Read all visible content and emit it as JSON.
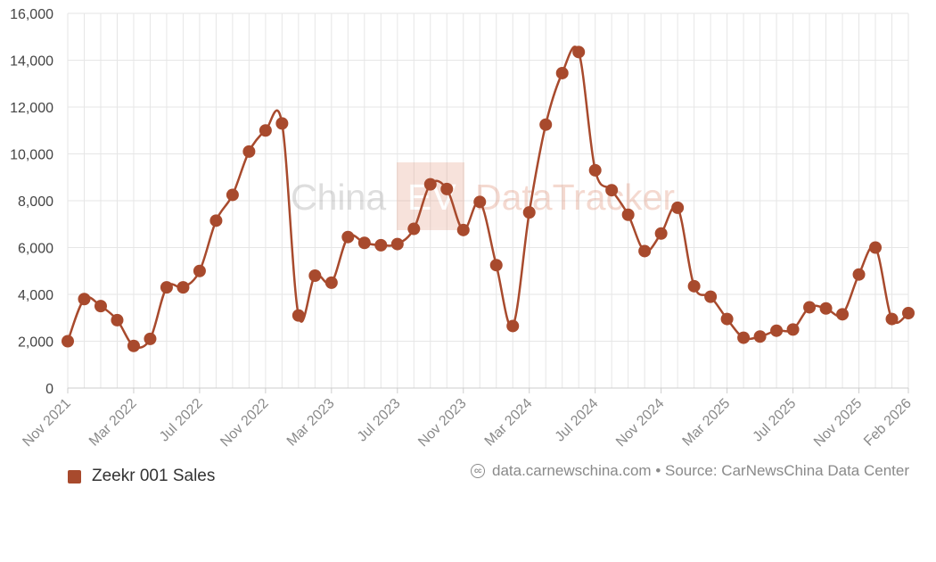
{
  "chart_data": {
    "type": "line",
    "title": "",
    "xlabel": "",
    "ylabel": "",
    "ylim": [
      0,
      16000
    ],
    "y_ticks": [
      0,
      2000,
      4000,
      6000,
      8000,
      10000,
      12000,
      14000,
      16000
    ],
    "y_tick_labels": [
      "0",
      "2,000",
      "4,000",
      "6,000",
      "8,000",
      "10,000",
      "12,000",
      "14,000",
      "16,000"
    ],
    "categories": [
      "Nov 2021",
      "Dec 2021",
      "Jan 2022",
      "Feb 2022",
      "Mar 2022",
      "Apr 2022",
      "May 2022",
      "Jun 2022",
      "Jul 2022",
      "Aug 2022",
      "Sep 2022",
      "Oct 2022",
      "Nov 2022",
      "Dec 2022",
      "Jan 2023",
      "Feb 2023",
      "Mar 2023",
      "Apr 2023",
      "May 2023",
      "Jun 2023",
      "Jul 2023",
      "Aug 2023",
      "Sep 2023",
      "Oct 2023",
      "Nov 2023",
      "Dec 2023",
      "Jan 2024",
      "Feb 2024",
      "Mar 2024",
      "Apr 2024",
      "May 2024",
      "Jun 2024",
      "Jul 2024",
      "Aug 2024",
      "Sep 2024",
      "Oct 2024",
      "Nov 2024",
      "Dec 2024",
      "Jan 2025",
      "Feb 2025",
      "Mar 2025",
      "Apr 2025",
      "May 2025",
      "Jun 2025",
      "Jul 2025",
      "Aug 2025",
      "Sep 2025",
      "Oct 2025",
      "Nov 2025",
      "Dec 2025",
      "Jan 2026",
      "Feb 2026"
    ],
    "x_tick_labels": [
      {
        "index": 0,
        "label": "Nov 2021"
      },
      {
        "index": 4,
        "label": "Mar 2022"
      },
      {
        "index": 8,
        "label": "Jul 2022"
      },
      {
        "index": 12,
        "label": "Nov 2022"
      },
      {
        "index": 16,
        "label": "Mar 2023"
      },
      {
        "index": 20,
        "label": "Jul 2023"
      },
      {
        "index": 24,
        "label": "Nov 2023"
      },
      {
        "index": 28,
        "label": "Mar 2024"
      },
      {
        "index": 32,
        "label": "Jul 2024"
      },
      {
        "index": 36,
        "label": "Nov 2024"
      },
      {
        "index": 40,
        "label": "Mar 2025"
      },
      {
        "index": 44,
        "label": "Jul 2025"
      },
      {
        "index": 48,
        "label": "Nov 2025"
      },
      {
        "index": 51,
        "label": "Feb 2026"
      }
    ],
    "series": [
      {
        "name": "Zeekr 001 Sales",
        "color": "#a84a2d",
        "values": [
          2000,
          3800,
          3500,
          2900,
          1800,
          2100,
          4300,
          4300,
          5000,
          7150,
          8250,
          10100,
          11000,
          11300,
          3100,
          4800,
          4500,
          6450,
          6200,
          6100,
          6150,
          6800,
          8700,
          8500,
          6750,
          7950,
          5250,
          2650,
          7500,
          11250,
          13450,
          14350,
          9300,
          8450,
          7400,
          5850,
          6600,
          7700,
          4350,
          3900,
          2950,
          2150,
          2200,
          2450,
          2500,
          3450,
          3400,
          3150,
          4850,
          6000,
          2950,
          3200
        ]
      }
    ],
    "grid": true,
    "legend": "bottom-left"
  },
  "watermark": {
    "part1": "China",
    "part2": "EV",
    "part3": "DataTracker"
  },
  "source_text": "data.carnewschina.com • Source: CarNewsChina Data Center",
  "colors": {
    "series": "#a84a2d",
    "grid": "#e6e6e6",
    "watermark_box": "#f3d3c8"
  }
}
